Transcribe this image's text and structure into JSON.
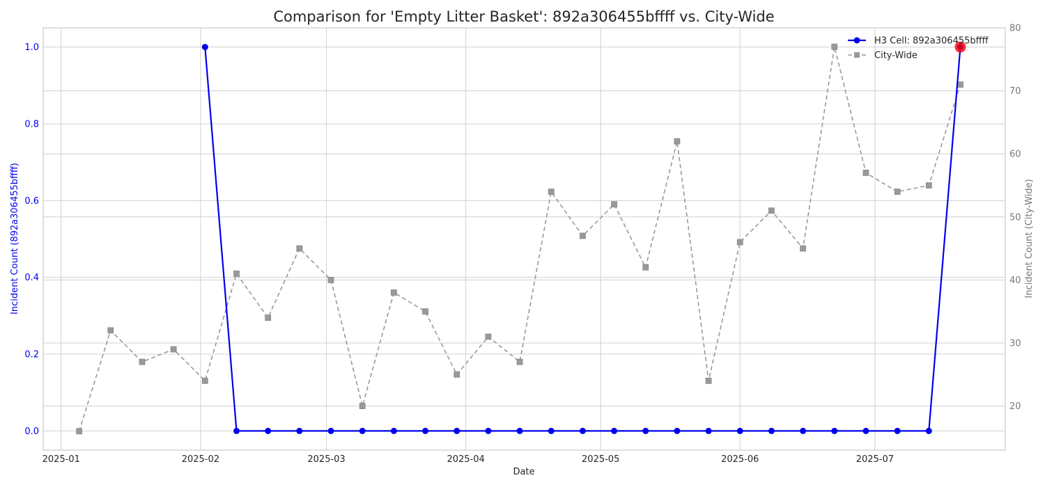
{
  "chart_data": {
    "type": "line",
    "title": "Comparison for 'Empty Litter Basket': 892a306455bffff vs. City-Wide",
    "xlabel": "Date",
    "ylabel_left": "Incident Count (892a306455bffff)",
    "ylabel_right": "Incident Count (City-Wide)",
    "x_ticks": [
      "2025-01",
      "2025-02",
      "2025-03",
      "2025-04",
      "2025-05",
      "2025-06",
      "2025-07"
    ],
    "y_left_ticks": [
      "0.0",
      "0.2",
      "0.4",
      "0.6",
      "0.8",
      "1.0"
    ],
    "y_right_ticks": [
      "20",
      "30",
      "40",
      "50",
      "60",
      "70",
      "80"
    ],
    "xlim": [
      "2024-12-28",
      "2025-07-30"
    ],
    "ylim_left": [
      -0.05,
      1.05
    ],
    "ylim_right": [
      13,
      80
    ],
    "grid": true,
    "legend_position": "top-right",
    "colors": {
      "h3": "#0000ee",
      "city": "#999999",
      "highlight": "#ff0000"
    },
    "series": [
      {
        "name": "H3 Cell: 892a306455bffff",
        "axis": "left",
        "x": [
          "2025-02-02",
          "2025-02-09",
          "2025-02-16",
          "2025-02-23",
          "2025-03-02",
          "2025-03-09",
          "2025-03-16",
          "2025-03-23",
          "2025-03-30",
          "2025-04-06",
          "2025-04-13",
          "2025-04-20",
          "2025-04-27",
          "2025-05-04",
          "2025-05-11",
          "2025-05-18",
          "2025-05-25",
          "2025-06-01",
          "2025-06-08",
          "2025-06-15",
          "2025-06-22",
          "2025-06-29",
          "2025-07-06",
          "2025-07-13",
          "2025-07-20"
        ],
        "y": [
          1,
          0,
          0,
          0,
          0,
          0,
          0,
          0,
          0,
          0,
          0,
          0,
          0,
          0,
          0,
          0,
          0,
          0,
          0,
          0,
          0,
          0,
          0,
          0,
          1
        ]
      },
      {
        "name": "City-Wide",
        "axis": "right",
        "x": [
          "2025-01-05",
          "2025-01-12",
          "2025-01-19",
          "2025-01-26",
          "2025-02-02",
          "2025-02-09",
          "2025-02-16",
          "2025-02-23",
          "2025-03-02",
          "2025-03-09",
          "2025-03-16",
          "2025-03-23",
          "2025-03-30",
          "2025-04-06",
          "2025-04-13",
          "2025-04-20",
          "2025-04-27",
          "2025-05-04",
          "2025-05-11",
          "2025-05-18",
          "2025-05-25",
          "2025-06-01",
          "2025-06-08",
          "2025-06-15",
          "2025-06-22",
          "2025-06-29",
          "2025-07-06",
          "2025-07-13",
          "2025-07-20"
        ],
        "y": [
          16,
          32,
          27,
          29,
          24,
          41,
          34,
          45,
          40,
          20,
          38,
          35,
          25,
          31,
          27,
          54,
          47,
          52,
          42,
          62,
          24,
          46,
          51,
          45,
          77,
          57,
          54,
          55,
          71
        ]
      }
    ],
    "highlight": {
      "x": "2025-07-20",
      "y": 1,
      "axis": "left"
    }
  }
}
